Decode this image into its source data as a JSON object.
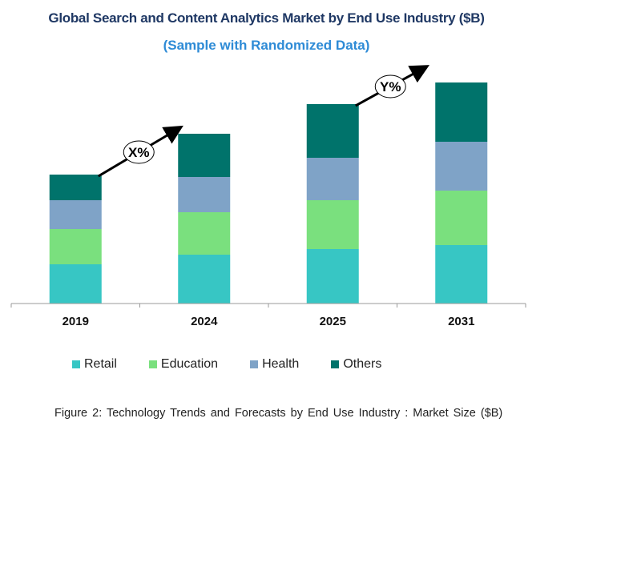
{
  "chart_data": {
    "type": "bar",
    "stacked": true,
    "title": "Global Search and Content Analytics Market by End Use Industry ($B)",
    "subtitle": "(Sample with Randomized Data)",
    "categories": [
      "2019",
      "2024",
      "2025",
      "2031"
    ],
    "series": [
      {
        "name": "Retail",
        "color": "#37c6c4",
        "values": [
          4.9,
          6.1,
          6.8,
          7.3
        ]
      },
      {
        "name": "Education",
        "color": "#7ae07e",
        "values": [
          4.4,
          5.3,
          6.1,
          6.8
        ]
      },
      {
        "name": "Health",
        "color": "#7fa3c7",
        "values": [
          3.6,
          4.4,
          5.3,
          6.1
        ]
      },
      {
        "name": "Others",
        "color": "#00736b",
        "values": [
          3.2,
          5.4,
          6.7,
          7.4
        ]
      }
    ],
    "annotations": [
      {
        "label": "X%",
        "from": "2019",
        "to": "2024"
      },
      {
        "label": "Y%",
        "from": "2025",
        "to": "2031"
      }
    ],
    "ylim": [
      0,
      30
    ],
    "grid": false,
    "legend": "bottom",
    "xlabel": "",
    "ylabel": ""
  },
  "caption": "Figure 2: Technology  Trends  and Forecasts by  End Use Industry  : Market Size ($B)"
}
